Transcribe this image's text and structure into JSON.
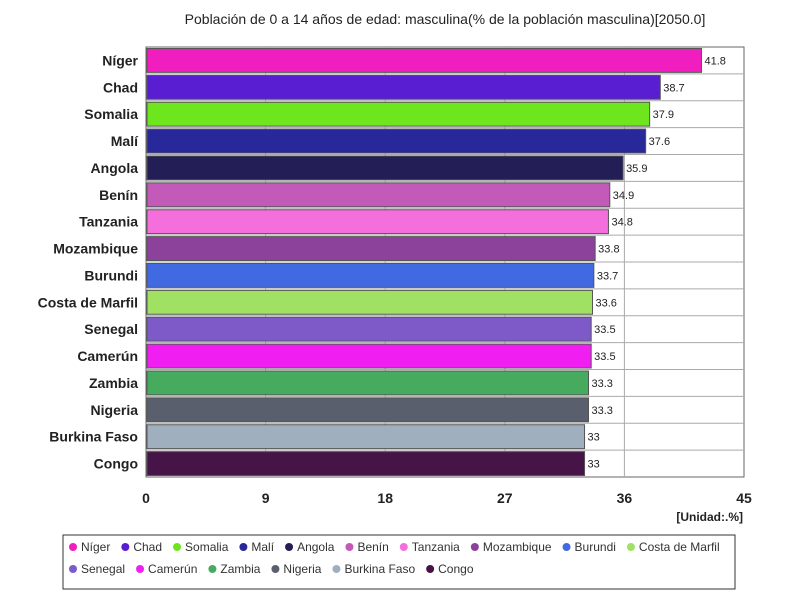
{
  "chart_data": {
    "type": "bar",
    "orientation": "horizontal",
    "title": "Población de 0 a 14 años de edad: masculina(% de la población masculina)[2050.0]",
    "unit": "[Unidad:.%]",
    "xlim": [
      0,
      45
    ],
    "ticks": [
      0,
      9,
      18,
      27,
      36,
      45
    ],
    "grid": true,
    "legend_position": "bottom",
    "categories": [
      "Níger",
      "Chad",
      "Somalia",
      "Malí",
      "Angola",
      "Benín",
      "Tanzania",
      "Mozambique",
      "Burundi",
      "Costa de Marfil",
      "Senegal",
      "Camerún",
      "Zambia",
      "Nigeria",
      "Burkina Faso",
      "Congo"
    ],
    "values": [
      41.8,
      38.7,
      37.9,
      37.6,
      35.9,
      34.9,
      34.8,
      33.8,
      33.7,
      33.6,
      33.5,
      33.5,
      33.3,
      33.3,
      33,
      33
    ],
    "value_labels": [
      "41.8",
      "38.7",
      "37.9",
      "37.6",
      "35.9",
      "34.9",
      "34.8",
      "33.8",
      "33.7",
      "33.6",
      "33.5",
      "33.5",
      "33.3",
      "33.3",
      "33",
      "33"
    ],
    "colors": [
      "#f01ebe",
      "#5a1ed2",
      "#6ee61e",
      "#28289b",
      "#231e55",
      "#c35ab9",
      "#f46edc",
      "#8c419b",
      "#4169e1",
      "#a0e164",
      "#7d5ac8",
      "#f01ef0",
      "#46aa5f",
      "#5a5f6e",
      "#a0afbe",
      "#461446"
    ]
  }
}
